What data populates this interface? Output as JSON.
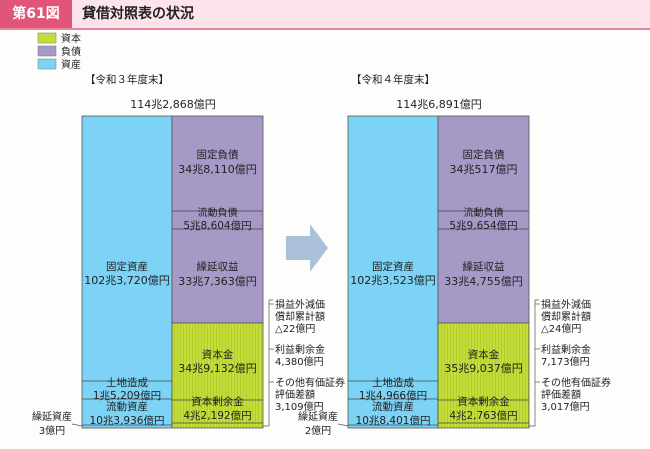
{
  "header": {
    "figure_label": "第61図",
    "title": "貸借対照表の状況"
  },
  "colors": {
    "capital": "#c5dd3a",
    "liabilities": "#a699c6",
    "assets": "#7dd3f5",
    "badge": "#e2557a",
    "header_bg": "#fde4ea"
  },
  "chart_data": {
    "type": "bar",
    "subtype": "balance-sheet-stacked",
    "legend": [
      {
        "key": "capital",
        "label": "資本"
      },
      {
        "key": "liabilities",
        "label": "負債"
      },
      {
        "key": "assets",
        "label": "資産"
      }
    ],
    "legend_position": "top-left",
    "arrow": "right",
    "panels": [
      {
        "period": "【令和３年度末】",
        "total": "114兆2,868億円",
        "assets": [
          {
            "name": "固定資産",
            "amount": "102兆3,720億円"
          },
          {
            "name": "土地造成",
            "amount": "1兆5,209億円"
          },
          {
            "name": "流動資産",
            "amount": "10兆3,936億円"
          },
          {
            "name": "繰延資産",
            "amount": "3億円"
          }
        ],
        "liabilities": [
          {
            "name": "固定負債",
            "amount": "34兆8,110億円"
          },
          {
            "name": "流動負債",
            "amount": "5兆8,604億円"
          },
          {
            "name": "繰延収益",
            "amount": "33兆7,363億円"
          }
        ],
        "capital": [
          {
            "name": "資本金",
            "amount": "34兆9,132億円"
          },
          {
            "name": "資本剰余金",
            "amount": "4兆2,192億円"
          }
        ],
        "side_notes": [
          {
            "name": "損益外減価償却累計額",
            "amount": "△22億円"
          },
          {
            "name": "利益剰余金",
            "amount": "4,380億円"
          },
          {
            "name": "その他有価証券評価差額",
            "amount": "3,109億円"
          }
        ]
      },
      {
        "period": "【令和４年度末】",
        "total": "114兆6,891億円",
        "assets": [
          {
            "name": "固定資産",
            "amount": "102兆3,523億円"
          },
          {
            "name": "土地造成",
            "amount": "1兆4,966億円"
          },
          {
            "name": "流動資産",
            "amount": "10兆8,401億円"
          },
          {
            "name": "繰延資産",
            "amount": "2億円"
          }
        ],
        "liabilities": [
          {
            "name": "固定負債",
            "amount": "34兆517億円"
          },
          {
            "name": "流動負債",
            "amount": "5兆9,654億円"
          },
          {
            "name": "繰延収益",
            "amount": "33兆4,755億円"
          }
        ],
        "capital": [
          {
            "name": "資本金",
            "amount": "35兆9,037億円"
          },
          {
            "name": "資本剰余金",
            "amount": "4兆2,763億円"
          }
        ],
        "side_notes": [
          {
            "name": "損益外減価償却累計額",
            "amount": "△24億円"
          },
          {
            "name": "利益剰余金",
            "amount": "7,173億円"
          },
          {
            "name": "その他有価証券評価差額",
            "amount": "3,017億円"
          }
        ]
      }
    ]
  }
}
